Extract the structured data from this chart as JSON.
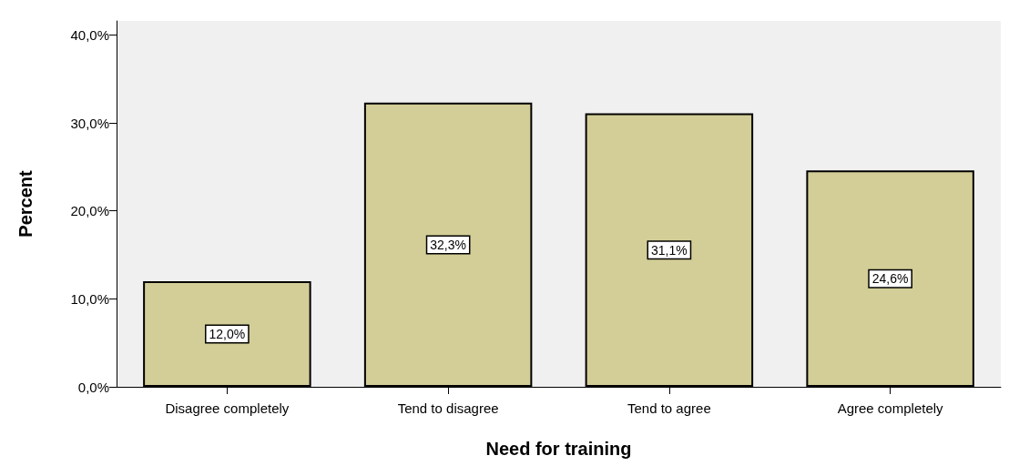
{
  "chart_data": {
    "type": "bar",
    "xlabel": "Need for training",
    "ylabel": "Percent",
    "categories": [
      "Disagree completely",
      "Tend to disagree",
      "Tend to agree",
      "Agree completely"
    ],
    "values": [
      12.0,
      32.3,
      31.1,
      24.6
    ],
    "value_labels": [
      "12,0%",
      "32,3%",
      "31,1%",
      "24,6%"
    ],
    "color": "#d3ce97",
    "ylim": [
      0,
      41.6
    ],
    "yticks": [
      {
        "value": 0,
        "label": "0,0%"
      },
      {
        "value": 10,
        "label": "10,0%"
      },
      {
        "value": 20,
        "label": "20,0%"
      },
      {
        "value": 30,
        "label": "30,0%"
      },
      {
        "value": 40,
        "label": "40,0%"
      }
    ],
    "grid": false
  }
}
